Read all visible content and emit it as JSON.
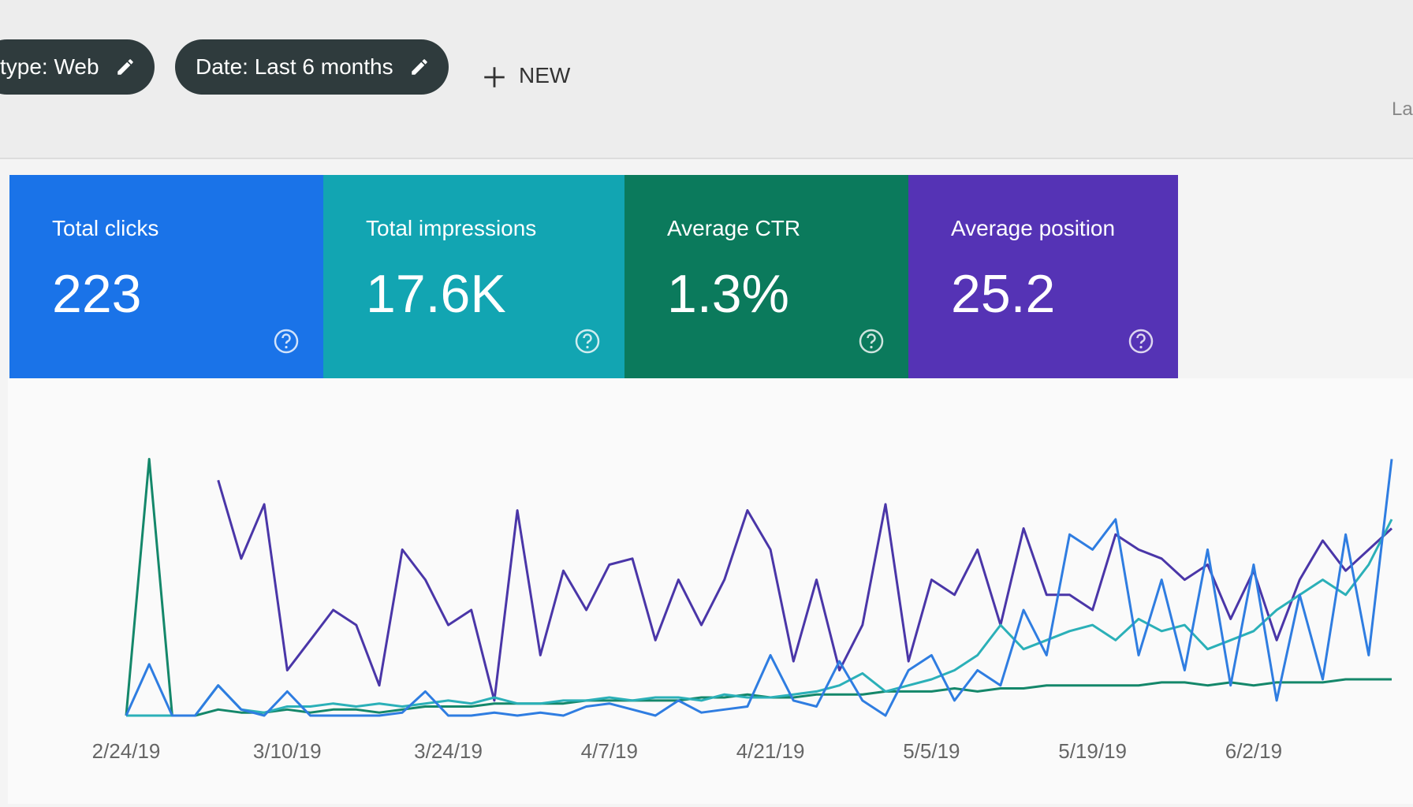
{
  "header": {
    "filters": [
      "type: Web",
      "Date: Last 6 months"
    ],
    "new_button": "NEW",
    "partial_label": "La"
  },
  "cards": [
    {
      "label": "Total clicks",
      "value": "223",
      "color": "#1a73e8"
    },
    {
      "label": "Total impressions",
      "value": "17.6K",
      "color": "#12a5b2"
    },
    {
      "label": "Average CTR",
      "value": "1.3%",
      "color": "#0b7a5c"
    },
    {
      "label": "Average position",
      "value": "25.2",
      "color": "#5533b5"
    }
  ],
  "chart_data": {
    "type": "line",
    "categories": [
      "2/24/19",
      null,
      null,
      null,
      null,
      null,
      null,
      "3/10/19",
      null,
      null,
      null,
      null,
      null,
      null,
      "3/24/19",
      null,
      null,
      null,
      null,
      null,
      null,
      "4/7/19",
      null,
      null,
      null,
      null,
      null,
      null,
      "4/21/19",
      null,
      null,
      null,
      null,
      null,
      null,
      "5/5/19",
      null,
      null,
      null,
      null,
      null,
      null,
      "5/19/19",
      null,
      null,
      null,
      null,
      null,
      null,
      "6/2/19",
      null,
      null,
      null,
      null,
      null,
      null
    ],
    "ylim": [
      0,
      100
    ],
    "series": [
      {
        "color": "#4a36a8",
        "values": [
          null,
          null,
          null,
          null,
          78,
          52,
          70,
          15,
          25,
          35,
          30,
          10,
          55,
          45,
          30,
          35,
          5,
          68,
          20,
          48,
          35,
          50,
          52,
          25,
          45,
          30,
          45,
          68,
          55,
          18,
          45,
          15,
          30,
          70,
          18,
          45,
          40,
          55,
          30,
          62,
          40,
          40,
          35,
          60,
          55,
          52,
          45,
          50,
          32,
          48,
          25,
          45,
          58,
          48,
          55,
          62
        ]
      },
      {
        "color": "#14876a",
        "values": [
          0,
          85,
          0,
          0,
          2,
          1,
          1,
          2,
          1,
          2,
          2,
          1,
          2,
          3,
          3,
          3,
          4,
          4,
          4,
          4,
          5,
          5,
          5,
          5,
          5,
          6,
          6,
          7,
          6,
          6,
          7,
          7,
          7,
          8,
          8,
          8,
          9,
          8,
          9,
          9,
          10,
          10,
          10,
          10,
          10,
          11,
          11,
          10,
          11,
          10,
          11,
          11,
          11,
          12,
          12,
          12
        ]
      },
      {
        "color": "#2bb0b8",
        "values": [
          0,
          0,
          0,
          0,
          10,
          2,
          1,
          3,
          3,
          4,
          3,
          4,
          3,
          4,
          5,
          4,
          6,
          4,
          4,
          5,
          5,
          6,
          5,
          6,
          6,
          5,
          7,
          6,
          6,
          7,
          8,
          10,
          14,
          8,
          10,
          12,
          15,
          20,
          30,
          22,
          25,
          28,
          30,
          25,
          32,
          28,
          30,
          22,
          25,
          28,
          35,
          40,
          45,
          40,
          50,
          65
        ]
      },
      {
        "color": "#2f7de1",
        "values": [
          0,
          17,
          0,
          0,
          10,
          2,
          0,
          8,
          0,
          0,
          0,
          0,
          1,
          8,
          0,
          0,
          1,
          0,
          1,
          0,
          3,
          4,
          2,
          0,
          5,
          1,
          2,
          3,
          20,
          5,
          3,
          18,
          5,
          0,
          15,
          20,
          5,
          15,
          10,
          35,
          20,
          60,
          55,
          65,
          20,
          45,
          15,
          55,
          10,
          50,
          5,
          40,
          12,
          60,
          20,
          85
        ]
      }
    ]
  }
}
